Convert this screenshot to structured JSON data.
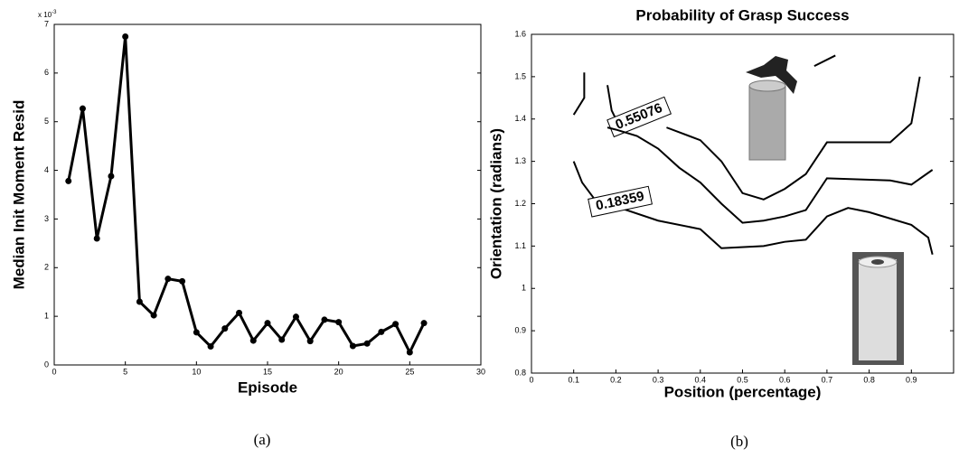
{
  "chart_data": [
    {
      "type": "line",
      "xlabel": "Episode",
      "ylabel": "Median Init Moment Resid",
      "scale_note": "x 10",
      "scale_exponent": "-3",
      "caption": "(a)",
      "x": [
        1,
        2,
        3,
        4,
        5,
        6,
        7,
        8,
        9,
        10,
        11,
        12,
        13,
        14,
        15,
        16,
        17,
        18,
        19,
        20,
        21,
        22,
        23,
        24,
        25,
        26
      ],
      "series": [
        {
          "color": "#000000",
          "values": [
            3.78,
            5.27,
            2.6,
            3.88,
            6.75,
            1.3,
            1.02,
            1.77,
            1.72,
            0.67,
            0.38,
            0.75,
            1.07,
            0.5,
            0.86,
            0.52,
            0.99,
            0.49,
            0.93,
            0.88,
            0.39,
            0.44,
            0.68,
            0.84,
            0.26,
            0.86
          ]
        }
      ],
      "xlim": [
        0,
        30
      ],
      "xticks": [
        0,
        5,
        10,
        15,
        20,
        25,
        30
      ],
      "ylim": [
        0,
        7
      ],
      "yticks": [
        0,
        1,
        2,
        3,
        4,
        5,
        6,
        7
      ]
    },
    {
      "type": "contour",
      "title": "Probability of Grasp Success",
      "xlabel": "Position (percentage)",
      "ylabel": "Orientation (radians)",
      "caption": "(b)",
      "series": [
        {
          "name": "0.55076",
          "color": "#000000",
          "x": [
            0.1,
            0.125,
            0.125,
            null,
            0.18,
            0.19,
            0.2,
            null,
            0.32,
            0.4,
            0.45,
            0.5,
            0.55,
            0.6,
            0.65,
            0.7,
            0.85,
            0.9,
            0.92,
            null,
            0.67,
            0.72
          ],
          "y": [
            1.41,
            1.45,
            1.51,
            null,
            1.48,
            1.42,
            1.4,
            null,
            1.38,
            1.35,
            1.3,
            1.225,
            1.21,
            1.235,
            1.27,
            1.345,
            1.345,
            1.39,
            1.5,
            null,
            1.525,
            1.55
          ]
        },
        {
          "color": "#000000",
          "x": [
            0.18,
            0.2,
            0.25,
            0.3,
            0.35,
            0.4,
            0.45,
            0.5,
            0.55,
            0.6,
            0.65,
            0.7,
            0.85,
            0.9,
            0.95
          ],
          "y": [
            1.38,
            1.375,
            1.36,
            1.33,
            1.285,
            1.25,
            1.2,
            1.155,
            1.16,
            1.17,
            1.185,
            1.26,
            1.255,
            1.245,
            1.28
          ]
        },
        {
          "name": "0.18359",
          "color": "#000000",
          "x": [
            0.1,
            0.12,
            0.15,
            0.3,
            0.4,
            0.45,
            0.55,
            0.6,
            0.65,
            0.7,
            0.75,
            0.8,
            0.9,
            0.94,
            0.95
          ],
          "y": [
            1.3,
            1.25,
            1.21,
            1.16,
            1.14,
            1.095,
            1.1,
            1.11,
            1.115,
            1.17,
            1.19,
            1.18,
            1.15,
            1.12,
            1.08
          ]
        }
      ],
      "xlim": [
        0,
        1
      ],
      "xticks": [
        0,
        0.1,
        0.2,
        0.3,
        0.4,
        0.5,
        0.6,
        0.7,
        0.8,
        0.9
      ],
      "ylim": [
        0.8,
        1.6
      ],
      "yticks": [
        0.8,
        0.9,
        1,
        1.1,
        1.2,
        1.3,
        1.4,
        1.5,
        1.6
      ]
    }
  ]
}
